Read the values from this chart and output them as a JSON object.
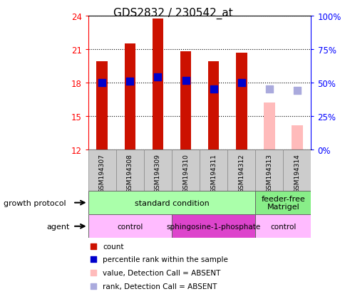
{
  "title": "GDS2832 / 230542_at",
  "samples": [
    "GSM194307",
    "GSM194308",
    "GSM194309",
    "GSM194310",
    "GSM194311",
    "GSM194312",
    "GSM194313",
    "GSM194314"
  ],
  "count_values": [
    19.9,
    21.5,
    23.7,
    20.8,
    19.9,
    20.7,
    null,
    null
  ],
  "count_values_absent": [
    null,
    null,
    null,
    null,
    null,
    null,
    16.2,
    14.2
  ],
  "percentile_values": [
    18.0,
    18.1,
    18.5,
    18.2,
    17.4,
    18.0,
    null,
    null
  ],
  "percentile_values_absent": [
    null,
    null,
    null,
    null,
    null,
    null,
    17.4,
    17.3
  ],
  "ylim_min": 12,
  "ylim_max": 24,
  "yticks": [
    12,
    15,
    18,
    21,
    24
  ],
  "y2labels": [
    "0%",
    "25%",
    "50%",
    "75%",
    "100%"
  ],
  "y2_positions": [
    12,
    15,
    18,
    21,
    24
  ],
  "bar_color_red": "#cc1100",
  "bar_color_pink": "#ffbbbb",
  "dot_color_blue": "#0000cc",
  "dot_color_lightblue": "#aaaadd",
  "plot_bg": "#ffffff",
  "outer_bg": "#ffffff",
  "growth_protocol_groups": [
    {
      "label": "standard condition",
      "start": 0,
      "end": 6,
      "color": "#aaffaa"
    },
    {
      "label": "feeder-free\nMatrigel",
      "start": 6,
      "end": 8,
      "color": "#88ee88"
    }
  ],
  "agent_groups": [
    {
      "label": "control",
      "start": 0,
      "end": 3,
      "color": "#ffbbff"
    },
    {
      "label": "sphingosine-1-phosphate",
      "start": 3,
      "end": 6,
      "color": "#dd44cc"
    },
    {
      "label": "control",
      "start": 6,
      "end": 8,
      "color": "#ffbbff"
    }
  ],
  "legend_items": [
    {
      "label": "count",
      "color": "#cc1100"
    },
    {
      "label": "percentile rank within the sample",
      "color": "#0000cc"
    },
    {
      "label": "value, Detection Call = ABSENT",
      "color": "#ffbbbb"
    },
    {
      "label": "rank, Detection Call = ABSENT",
      "color": "#aaaadd"
    }
  ],
  "bar_width": 0.4,
  "dot_size": 50,
  "cell_color": "#cccccc",
  "cell_edge": "#888888"
}
